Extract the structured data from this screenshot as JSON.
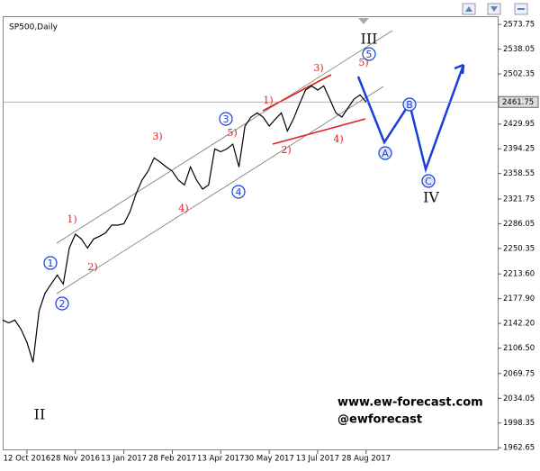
{
  "header": {
    "symbol": "SP500,Daily"
  },
  "chart_data": {
    "type": "line",
    "categories": [
      null,
      null,
      null,
      null,
      "12 Oct 2016",
      null,
      null,
      null,
      null,
      null,
      null,
      null,
      "28 Nov 2016",
      null,
      null,
      null,
      null,
      null,
      null,
      null,
      "13 Jan 2017",
      null,
      null,
      null,
      null,
      null,
      null,
      null,
      "28 Feb 2017",
      null,
      null,
      null,
      null,
      null,
      null,
      null,
      "13 Apr 2017",
      null,
      null,
      null,
      null,
      null,
      null,
      null,
      "30 May 2017",
      null,
      null,
      null,
      null,
      null,
      null,
      null,
      "13 Jul 2017",
      null,
      null,
      null,
      null,
      null,
      null,
      null,
      "28 Aug 2017"
    ],
    "values": [
      2147,
      2143,
      2147,
      2134,
      2115,
      2086,
      2160,
      2186,
      2199,
      2212,
      2199,
      2251,
      2271,
      2264,
      2251,
      2264,
      2268,
      2273,
      2284,
      2284,
      2286,
      2303,
      2329,
      2349,
      2362,
      2381,
      2375,
      2368,
      2362,
      2349,
      2342,
      2368,
      2349,
      2336,
      2342,
      2394,
      2390,
      2394,
      2401,
      2368,
      2427,
      2440,
      2446,
      2440,
      2427,
      2437,
      2446,
      2420,
      2437,
      2459,
      2479,
      2485,
      2479,
      2485,
      2466,
      2446,
      2440,
      2453,
      2466,
      2472,
      2461.75
    ],
    "color": "#000000",
    "ylim": [
      1959,
      2583
    ],
    "yticks": [
      2573.75,
      2538.05,
      2502.35,
      2429.95,
      2394.25,
      2358.55,
      2321.75,
      2286.05,
      2250.35,
      {
        "value": 2213.6,
        "label": "2213.60"
      },
      {
        "value": 2177.9,
        "label": "2177.90"
      },
      {
        "value": 2142.2,
        "label": "2142.20"
      },
      {
        "value": 2106.5,
        "label": "2106.50"
      },
      2069.75,
      2034.05,
      1998.35,
      1962.65
    ],
    "current_price": 2461.75,
    "circled_labels": [
      "1",
      "2",
      "3",
      "4",
      "5",
      "A",
      "B",
      "C"
    ],
    "red_labels": [
      "1)",
      "2)",
      "3)",
      "4)",
      "5)",
      "1)",
      "2)",
      "3)",
      "4)",
      "5)"
    ],
    "roman_labels": [
      "II",
      "III",
      "IV"
    ],
    "watermark": [
      "www.ew-forecast.com",
      "@ewforecast"
    ]
  }
}
